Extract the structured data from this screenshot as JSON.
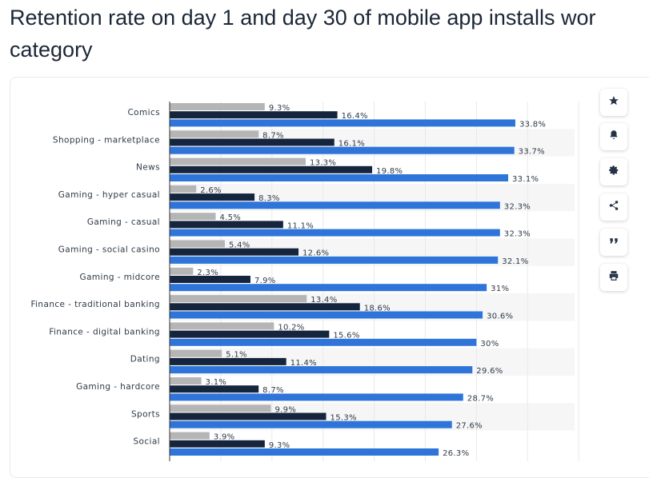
{
  "page": {
    "title_line1": "Retention rate on day 1 and day 30 of mobile app installs wor",
    "title_line2": "category"
  },
  "colors": {
    "day30": "#b5b5b5",
    "day7": "#15253d",
    "day1": "#2f74d9",
    "grid": "#e9e9e9",
    "stripe": "#f6f6f6"
  },
  "toolbar": {
    "icons": [
      "star-icon",
      "bell-icon",
      "gear-icon",
      "share-icon",
      "quote-icon",
      "print-icon"
    ]
  },
  "chart_data": {
    "type": "bar",
    "orientation": "horizontal",
    "categories": [
      "Comics",
      "Shopping - marketplace",
      "News",
      "Gaming - hyper casual",
      "Gaming - casual",
      "Gaming - social casino",
      "Gaming - midcore",
      "Finance - traditional banking",
      "Finance - digital banking",
      "Dating",
      "Gaming - hardcore",
      "Sports",
      "Social"
    ],
    "series": [
      {
        "values": [
          9.3,
          8.7,
          13.3,
          2.6,
          4.5,
          5.4,
          2.3,
          13.4,
          10.2,
          5.1,
          3.1,
          9.9,
          3.9
        ],
        "labels": [
          "9.3%",
          "8.7%",
          "13.3%",
          "2.6%",
          "4.5%",
          "5.4%",
          "2.3%",
          "13.4%",
          "10.2%",
          "5.1%",
          "3.1%",
          "9.9%",
          "3.9%"
        ]
      },
      {
        "values": [
          16.4,
          16.1,
          19.8,
          8.3,
          11.1,
          12.6,
          7.9,
          18.6,
          15.6,
          11.4,
          8.7,
          15.3,
          9.3
        ],
        "labels": [
          "16.4%",
          "16.1%",
          "19.8%",
          "8.3%",
          "11.1%",
          "12.6%",
          "7.9%",
          "18.6%",
          "15.6%",
          "11.4%",
          "8.7%",
          "15.3%",
          "9.3%"
        ]
      },
      {
        "values": [
          33.8,
          33.7,
          33.1,
          32.3,
          32.3,
          32.1,
          31,
          30.6,
          30,
          29.6,
          28.7,
          27.6,
          26.3
        ],
        "labels": [
          "33.8%",
          "33.7%",
          "33.1%",
          "32.3%",
          "32.3%",
          "32.1%",
          "31%",
          "30.6%",
          "30%",
          "29.6%",
          "28.7%",
          "27.6%",
          "26.3%"
        ]
      }
    ],
    "xlim": [
      0,
      40
    ],
    "grid": true,
    "legend": "none"
  }
}
